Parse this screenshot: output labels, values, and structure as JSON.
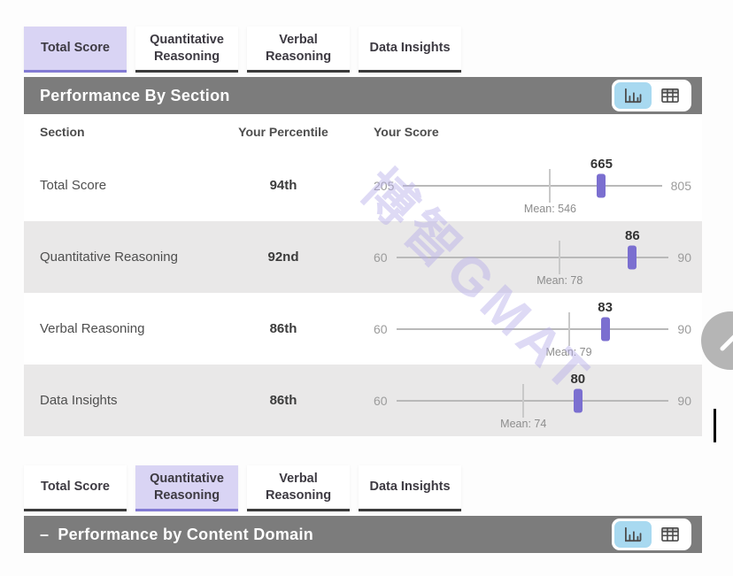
{
  "tab_bars": [
    {
      "tabs": [
        {
          "label": "Total Score",
          "active": true
        },
        {
          "label": "Quantitative Reasoning",
          "active": false
        },
        {
          "label": "Verbal Reasoning",
          "active": false
        },
        {
          "label": "Data Insights",
          "active": false
        }
      ]
    },
    {
      "tabs": [
        {
          "label": "Total Score",
          "active": false
        },
        {
          "label": "Quantitative Reasoning",
          "active": true
        },
        {
          "label": "Verbal Reasoning",
          "active": false
        },
        {
          "label": "Data Insights",
          "active": false
        }
      ]
    }
  ],
  "section_panel": {
    "header": {
      "title": "Performance By Section",
      "view_toggle": {
        "options": [
          "chart",
          "table"
        ],
        "active": "chart"
      }
    },
    "columns": [
      "Section",
      "Your Percentile",
      "Your Score"
    ],
    "rows": [
      {
        "section": "Total Score",
        "percentile": "94th",
        "min": 205,
        "max": 805,
        "score": 665,
        "mean": 546,
        "mean_label": "Mean: 546"
      },
      {
        "section": "Quantitative Reasoning",
        "percentile": "92nd",
        "min": 60,
        "max": 90,
        "score": 86,
        "mean": 78,
        "mean_label": "Mean: 78"
      },
      {
        "section": "Verbal Reasoning",
        "percentile": "86th",
        "min": 60,
        "max": 90,
        "score": 83,
        "mean": 79,
        "mean_label": "Mean: 79"
      },
      {
        "section": "Data Insights",
        "percentile": "86th",
        "min": 60,
        "max": 90,
        "score": 80,
        "mean": 74,
        "mean_label": "Mean: 74"
      }
    ]
  },
  "domain_panel": {
    "header": {
      "collapse_icon": "–",
      "title": "Performance by Content Domain",
      "view_toggle": {
        "options": [
          "chart",
          "table"
        ],
        "active": "chart"
      }
    }
  },
  "watermark": {
    "text": "博智GMAT",
    "color": "#b7aee9"
  },
  "colors": {
    "active_tab_bg": "#d9d4f4",
    "active_tab_underline": "#837bd4",
    "inactive_tab_underline": "#3b3b3b",
    "header_bar_bg": "#7c7c7c",
    "alt_row_bg": "#e9e8e8",
    "slider_track": "#b9b9b9",
    "score_marker": "#7b6fd0",
    "toggle_active_bg": "#a8d9f0"
  }
}
